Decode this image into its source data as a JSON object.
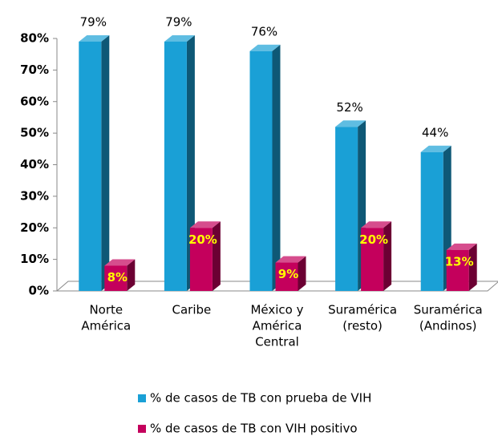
{
  "chart_data": {
    "type": "bar3d",
    "categories": [
      [
        "Norte",
        "América"
      ],
      [
        "Caribe"
      ],
      [
        "México y",
        "América",
        "Central"
      ],
      [
        "Suramérica",
        "(resto)"
      ],
      [
        "Suramérica",
        "(Andinos)"
      ]
    ],
    "series": [
      {
        "name": "% de casos de TB con prueba de VIH",
        "color": "#1aa0d6",
        "values": [
          79,
          79,
          76,
          52,
          44
        ],
        "value_labels": [
          "79%",
          "79%",
          "76%",
          "52%",
          "44%"
        ]
      },
      {
        "name": "% de casos de TB con VIH positivo",
        "color": "#c4005c",
        "values": [
          8,
          20,
          9,
          20,
          13
        ],
        "value_labels": [
          "8%",
          "20%",
          "9%",
          "20%",
          "13%"
        ]
      }
    ],
    "ylim": [
      0,
      80
    ],
    "yticks": [
      {
        "value": 0,
        "label": "0%"
      },
      {
        "value": 10,
        "label": "10%"
      },
      {
        "value": 20,
        "label": "20%"
      },
      {
        "value": 30,
        "label": "30%"
      },
      {
        "value": 40,
        "label": "40%"
      },
      {
        "value": 50,
        "label": "50%"
      },
      {
        "value": 60,
        "label": "60%"
      },
      {
        "value": 70,
        "label": "70%"
      },
      {
        "value": 80,
        "label": "80%"
      }
    ],
    "legend": "bottom"
  }
}
